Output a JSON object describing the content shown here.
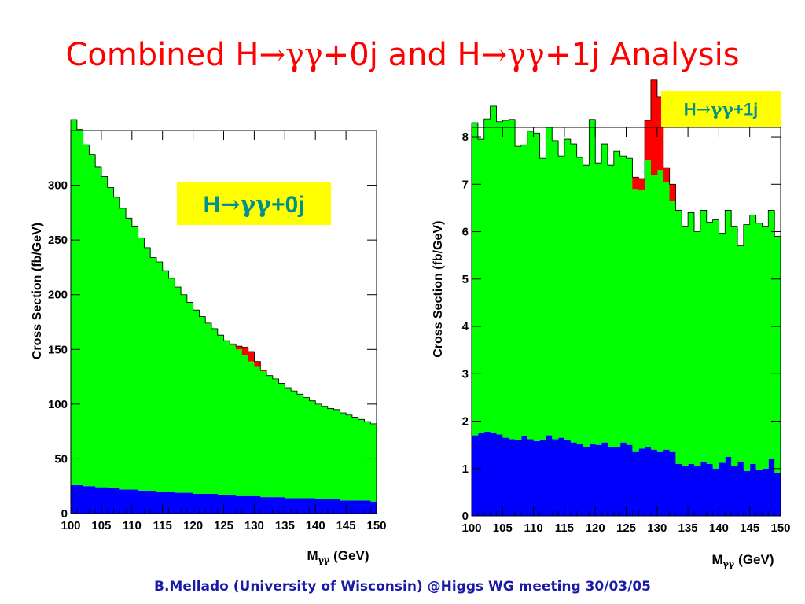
{
  "title": {
    "part1": "Combined H",
    "arrow": "→",
    "gg1": "γγ",
    "part2": "+0j and H",
    "arrow2": "→",
    "gg2": "γγ",
    "part3": "+1j Analysis"
  },
  "footer": "B.Mellado (University of Wisconsin) @Higgs WG meeting 30/03/05",
  "colors": {
    "title": "#ff0000",
    "footer": "#1a1aa8",
    "signal": "#ff0000",
    "background_green": "#00ff00",
    "background_blue": "#0000ff",
    "label_box": "#ffff00",
    "label_text": "#009090"
  },
  "chart_data": [
    {
      "type": "area",
      "label": {
        "h": "H",
        "arrow": "→",
        "gg": "γγ",
        "rest": "+0j"
      },
      "xlabel": {
        "m": "M",
        "sub": "γγ",
        "unit": "(GeV)"
      },
      "ylabel": "Cross Section (fb/GeV)",
      "xlim": [
        100,
        150
      ],
      "ylim": [
        0,
        350
      ],
      "xticks": [
        100,
        105,
        110,
        115,
        120,
        125,
        130,
        135,
        140,
        145,
        150
      ],
      "yticks": [
        0,
        50,
        100,
        150,
        200,
        250,
        300
      ],
      "bin_width": 1,
      "x": [
        100,
        101,
        102,
        103,
        104,
        105,
        106,
        107,
        108,
        109,
        110,
        111,
        112,
        113,
        114,
        115,
        116,
        117,
        118,
        119,
        120,
        121,
        122,
        123,
        124,
        125,
        126,
        127,
        128,
        129,
        130,
        131,
        132,
        133,
        134,
        135,
        136,
        137,
        138,
        139,
        140,
        141,
        142,
        143,
        144,
        145,
        146,
        147,
        148,
        149
      ],
      "series": [
        {
          "name": "",
          "color": "#0000ff",
          "values": [
            26,
            26,
            25,
            25,
            24,
            24,
            23,
            23,
            22,
            22,
            22,
            21,
            21,
            21,
            20,
            20,
            20,
            19,
            19,
            19,
            18,
            18,
            18,
            18,
            17,
            17,
            17,
            16,
            16,
            16,
            16,
            15,
            15,
            15,
            15,
            14,
            14,
            14,
            14,
            14,
            13,
            13,
            13,
            13,
            12,
            12,
            12,
            12,
            12,
            11
          ]
        },
        {
          "name": "",
          "color": "#00ff00",
          "values": [
            334,
            325,
            312,
            303,
            293,
            284,
            275,
            266,
            257,
            248,
            240,
            231,
            222,
            213,
            210,
            202,
            195,
            188,
            181,
            174,
            168,
            162,
            156,
            151,
            146,
            141,
            137,
            134,
            129,
            123,
            118,
            115,
            111,
            108,
            104,
            101,
            98,
            95,
            92,
            89,
            87,
            85,
            83,
            82,
            80,
            78,
            76,
            74,
            72,
            71
          ]
        },
        {
          "name": "",
          "color": "#ff0000",
          "values": [
            0,
            0,
            0,
            0,
            0,
            0,
            0,
            0,
            0,
            0,
            0,
            0,
            0,
            0,
            0,
            0,
            0,
            0,
            0,
            0,
            0,
            0,
            0,
            0,
            0,
            0,
            1,
            3,
            7,
            9,
            5,
            1,
            0,
            0,
            0,
            0,
            0,
            0,
            0,
            0,
            0,
            0,
            0,
            0,
            0,
            0,
            0,
            0,
            0,
            0
          ]
        }
      ]
    },
    {
      "type": "area",
      "label": {
        "h": "H",
        "arrow": "→",
        "gg": "γγ",
        "rest": "+1j"
      },
      "xlabel": {
        "m": "M",
        "sub": "γγ",
        "unit": "(GeV)"
      },
      "ylabel": "Cross Section (fb/GeV)",
      "xlim": [
        100,
        150
      ],
      "ylim": [
        0,
        8.2
      ],
      "xticks": [
        100,
        105,
        110,
        115,
        120,
        125,
        130,
        135,
        140,
        145,
        150
      ],
      "yticks": [
        0,
        1,
        2,
        3,
        4,
        5,
        6,
        7,
        8
      ],
      "bin_width": 1,
      "x": [
        100,
        101,
        102,
        103,
        104,
        105,
        106,
        107,
        108,
        109,
        110,
        111,
        112,
        113,
        114,
        115,
        116,
        117,
        118,
        119,
        120,
        121,
        122,
        123,
        124,
        125,
        126,
        127,
        128,
        129,
        130,
        131,
        132,
        133,
        134,
        135,
        136,
        137,
        138,
        139,
        140,
        141,
        142,
        143,
        144,
        145,
        146,
        147,
        148,
        149
      ],
      "series": [
        {
          "name": "",
          "color": "#0000ff",
          "values": [
            1.7,
            1.75,
            1.78,
            1.75,
            1.72,
            1.65,
            1.62,
            1.6,
            1.68,
            1.62,
            1.58,
            1.6,
            1.7,
            1.62,
            1.65,
            1.6,
            1.55,
            1.52,
            1.45,
            1.52,
            1.5,
            1.55,
            1.45,
            1.45,
            1.55,
            1.5,
            1.35,
            1.42,
            1.45,
            1.4,
            1.35,
            1.4,
            1.35,
            1.1,
            1.05,
            1.1,
            1.05,
            1.15,
            1.1,
            1.0,
            1.12,
            1.25,
            1.05,
            1.15,
            0.95,
            1.1,
            0.98,
            1.0,
            1.2,
            0.9
          ]
        },
        {
          "name": "",
          "color": "#00ff00",
          "values": [
            6.6,
            6.2,
            6.6,
            6.9,
            6.6,
            6.7,
            6.75,
            6.2,
            6.15,
            6.5,
            6.5,
            5.95,
            6.5,
            6.3,
            5.95,
            6.35,
            6.3,
            6.05,
            5.95,
            6.85,
            5.95,
            6.3,
            5.95,
            6.25,
            6.05,
            6.05,
            5.55,
            5.45,
            6.05,
            5.8,
            5.95,
            5.65,
            5.3,
            5.35,
            5.05,
            5.3,
            4.95,
            5.3,
            5.1,
            5.25,
            4.85,
            5.2,
            5.05,
            4.55,
            5.2,
            5.25,
            5.2,
            5.1,
            5.25,
            5.0
          ]
        },
        {
          "name": "",
          "color": "#ff0000",
          "values": [
            0,
            0,
            0,
            0,
            0,
            0,
            0,
            0,
            0,
            0,
            0,
            0,
            0,
            0,
            0,
            0,
            0,
            0,
            0,
            0,
            0,
            0,
            0,
            0,
            0,
            0,
            0.25,
            0.25,
            0.85,
            2.0,
            1.55,
            0.3,
            0.35,
            0,
            0,
            0,
            0,
            0,
            0,
            0,
            0,
            0,
            0,
            0,
            0,
            0,
            0,
            0,
            0,
            0
          ]
        }
      ]
    }
  ]
}
